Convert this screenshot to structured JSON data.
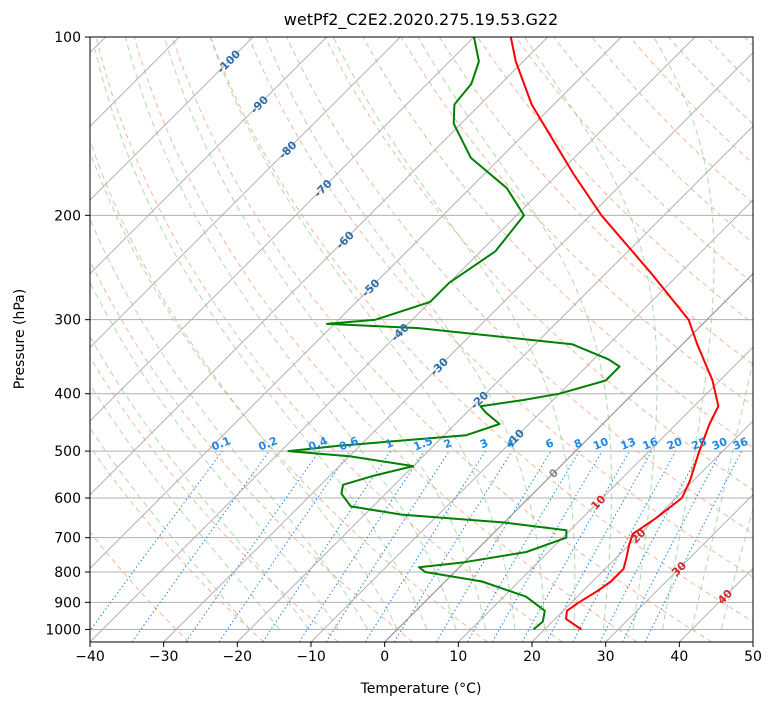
{
  "chart_data": {
    "type": "line",
    "title": "wetPf2_C2E2.2020.275.19.53.G22",
    "xlabel": "Temperature (°C)",
    "ylabel": "Pressure (hPa)",
    "xlim": [
      -40,
      50
    ],
    "ylim": [
      1050,
      100
    ],
    "y_scale": "log",
    "skew": "skew-T",
    "x_ticks": [
      "−40",
      "−30",
      "−20",
      "−10",
      "0",
      "10",
      "20",
      "30",
      "40",
      "50"
    ],
    "y_ticks": [
      "100",
      "200",
      "300",
      "400",
      "500",
      "600",
      "700",
      "800",
      "900",
      "1000"
    ],
    "grid": true,
    "colors": {
      "temperature": "#ff0000",
      "dewpoint": "#008000",
      "dry_adiabat": "#f4a582",
      "moist_adiabat": "#8fcb8f",
      "mixing_ratio": "#1e88e5",
      "isotherm_label": "#2c6ea8",
      "isotherm_label_warm": "#d62728"
    },
    "series": [
      {
        "name": "",
        "kind": "temperature",
        "points": [
          [
            1000,
            25.0
          ],
          [
            960,
            21.5
          ],
          [
            930,
            20.5
          ],
          [
            900,
            21.0
          ],
          [
            860,
            22.0
          ],
          [
            830,
            22.5
          ],
          [
            790,
            22.5
          ],
          [
            760,
            21.5
          ],
          [
            720,
            20.0
          ],
          [
            690,
            19.0
          ],
          [
            650,
            20.0
          ],
          [
            600,
            20.8
          ],
          [
            560,
            19.5
          ],
          [
            500,
            16.8
          ],
          [
            450,
            14.5
          ],
          [
            420,
            13.3
          ],
          [
            380,
            9.0
          ],
          [
            330,
            2.0
          ],
          [
            300,
            -2.5
          ],
          [
            250,
            -14.0
          ],
          [
            200,
            -28.5
          ],
          [
            170,
            -38.0
          ],
          [
            150,
            -45.0
          ],
          [
            130,
            -53.0
          ],
          [
            110,
            -61.0
          ],
          [
            100,
            -65.0
          ]
        ]
      },
      {
        "name": "",
        "kind": "dewpoint",
        "points": [
          [
            1000,
            18.5
          ],
          [
            970,
            18.7
          ],
          [
            930,
            17.5
          ],
          [
            880,
            13.0
          ],
          [
            830,
            5.0
          ],
          [
            800,
            -4.0
          ],
          [
            785,
            -5.5
          ],
          [
            770,
            0.0
          ],
          [
            740,
            7.0
          ],
          [
            700,
            10.5
          ],
          [
            680,
            9.5
          ],
          [
            660,
            0.0
          ],
          [
            640,
            -15.0
          ],
          [
            620,
            -23.0
          ],
          [
            590,
            -26.0
          ],
          [
            570,
            -27.0
          ],
          [
            550,
            -24.0
          ],
          [
            530,
            -20.0
          ],
          [
            510,
            -30.0
          ],
          [
            500,
            -39.0
          ],
          [
            490,
            -33.0
          ],
          [
            470,
            -17.0
          ],
          [
            450,
            -14.0
          ],
          [
            430,
            -17.5
          ],
          [
            420,
            -19.0
          ],
          [
            410,
            -14.0
          ],
          [
            400,
            -10.0
          ],
          [
            380,
            -5.5
          ],
          [
            360,
            -5.5
          ],
          [
            350,
            -8.0
          ],
          [
            330,
            -15.0
          ],
          [
            310,
            -38.0
          ],
          [
            305,
            -51.0
          ],
          [
            300,
            -45.0
          ],
          [
            280,
            -40.0
          ],
          [
            260,
            -40.0
          ],
          [
            230,
            -38.0
          ],
          [
            200,
            -39.0
          ],
          [
            180,
            -45.0
          ],
          [
            160,
            -54.0
          ],
          [
            140,
            -61.0
          ],
          [
            130,
            -63.5
          ],
          [
            120,
            -64.0
          ],
          [
            110,
            -66.0
          ],
          [
            100,
            -70.0
          ]
        ]
      }
    ],
    "isotherm_labels": [
      {
        "t": -100,
        "p": 110
      },
      {
        "t": -90,
        "p": 130
      },
      {
        "t": -80,
        "p": 155
      },
      {
        "t": -70,
        "p": 180
      },
      {
        "t": -60,
        "p": 220
      },
      {
        "t": -50,
        "p": 265
      },
      {
        "t": -40,
        "p": 315
      },
      {
        "t": -30,
        "p": 360
      },
      {
        "t": -20,
        "p": 410
      },
      {
        "t": -10,
        "p": 475
      },
      {
        "t": 0,
        "p": 545
      },
      {
        "t": 10,
        "p": 610
      },
      {
        "t": 20,
        "p": 695
      },
      {
        "t": 30,
        "p": 790
      },
      {
        "t": 40,
        "p": 880
      }
    ],
    "isotherm_text": [
      "-100",
      "-90",
      "-80",
      "-70",
      "-60",
      "-50",
      "-40",
      "-30",
      "-20",
      "-10",
      "0",
      "10",
      "20",
      "30",
      "40"
    ],
    "mixing_ratio_labels": [
      "0.1",
      "0.2",
      "0.4",
      "0.6",
      "1",
      "1.5",
      "2",
      "3",
      "4",
      "6",
      "8",
      "10",
      "13",
      "16",
      "20",
      "25",
      "30",
      "36"
    ]
  }
}
